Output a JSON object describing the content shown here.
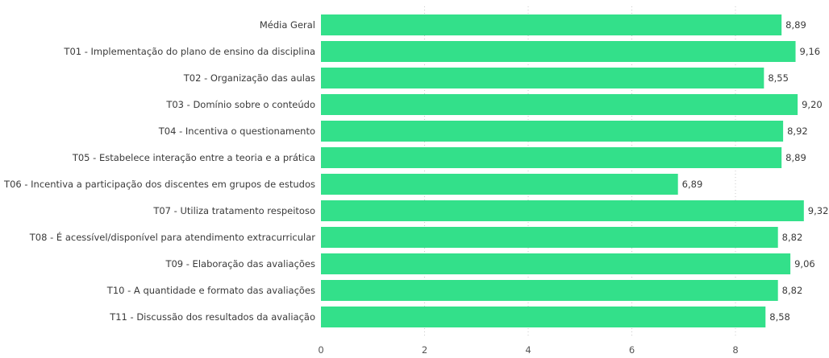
{
  "chart_data": {
    "type": "bar",
    "orientation": "horizontal",
    "title": "",
    "xlabel": "",
    "ylabel": "",
    "xlim": [
      0,
      9.3
    ],
    "xticks": [
      0,
      2,
      4,
      6,
      8
    ],
    "grid": "vertical dotted",
    "bar_color": "#33e08a",
    "categories": [
      "Média Geral",
      "T01 - Implementação do plano de ensino da disciplina",
      "T02 - Organização das aulas",
      "T03 - Domínio sobre o conteúdo",
      "T04 - Incentiva o questionamento",
      "T05 - Estabelece interação entre a teoria e a prática",
      "T06 - Incentiva a participação dos discentes em grupos de estudos",
      "T07 - Utiliza tratamento respeitoso",
      "T08 - É acessível/disponível para atendimento extracurricular",
      "T09 - Elaboração das avaliações",
      "T10 - A quantidade e formato das avaliações",
      "T11 - Discussão dos resultados da avaliação"
    ],
    "values": [
      8.89,
      9.16,
      8.55,
      9.2,
      8.92,
      8.89,
      6.89,
      9.32,
      8.82,
      9.06,
      8.82,
      8.58
    ],
    "value_labels": [
      "8,89",
      "9,16",
      "8,55",
      "9,20",
      "8,92",
      "8,89",
      "6,89",
      "9,32",
      "8,82",
      "9,06",
      "8,82",
      "8,58"
    ]
  }
}
